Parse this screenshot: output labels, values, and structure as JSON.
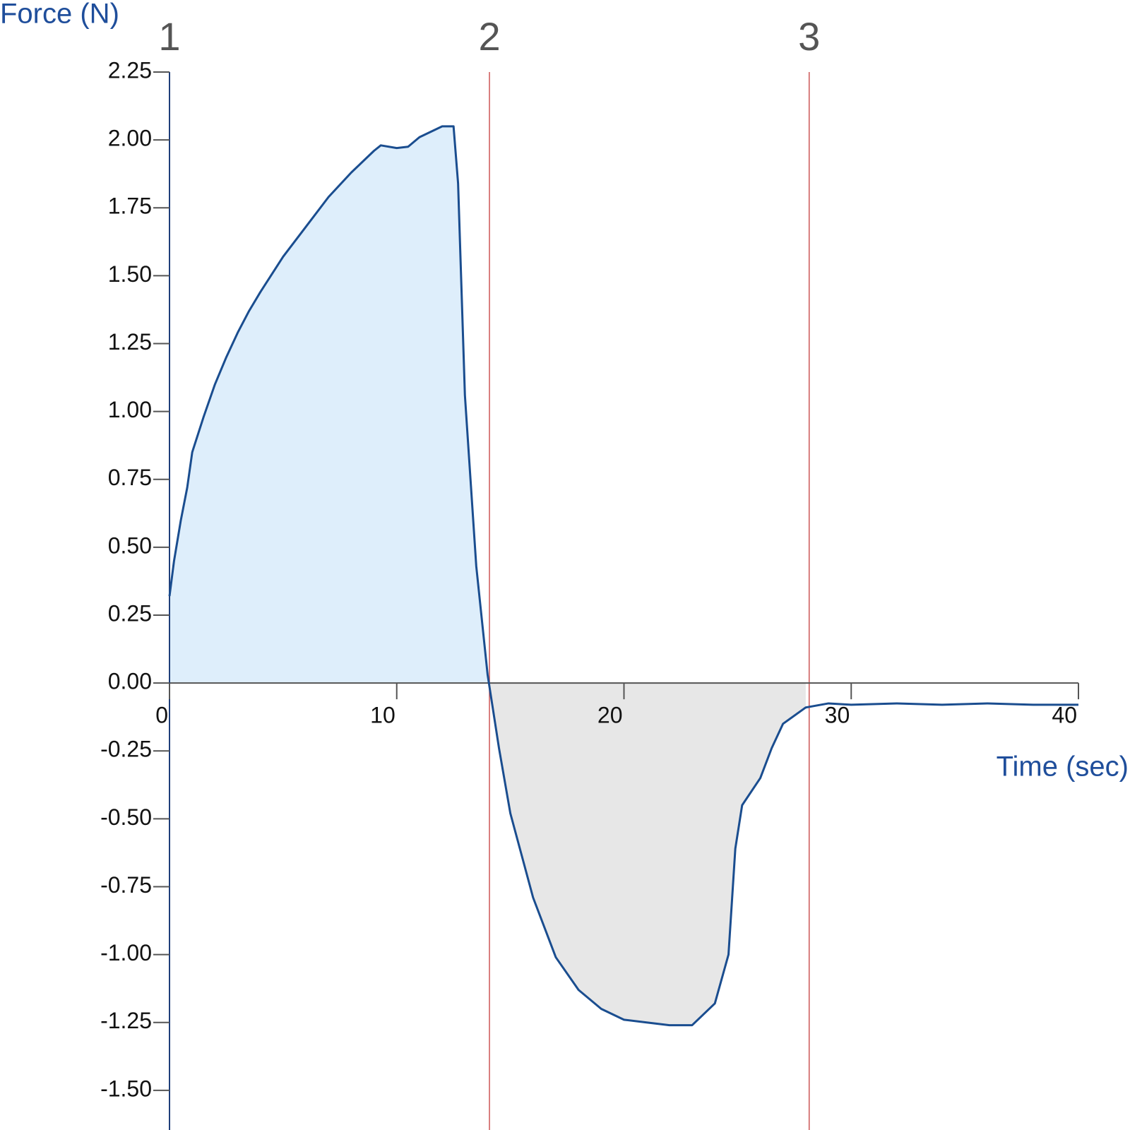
{
  "chart_data": {
    "type": "line",
    "y_label": "Force (N)",
    "x_label": "Time (sec)",
    "color": "#1a4d8f",
    "fill_colors": {
      "positive": "#deeefb",
      "negative": "#e7e7e7"
    },
    "marker_color": "#cc5555",
    "x": [
      0,
      0.2,
      0.5,
      0.78,
      1,
      1.5,
      2,
      2.5,
      3,
      3.5,
      4,
      5,
      6,
      7,
      8,
      9,
      9.3,
      10,
      10.5,
      11,
      12,
      12.5,
      12.7,
      13,
      13.5,
      14,
      14.5,
      15,
      16,
      17,
      18,
      19,
      20,
      21,
      22,
      23,
      24,
      24.6,
      24.9,
      25.2,
      26,
      26.5,
      27,
      28,
      29,
      30,
      32,
      34,
      36,
      38,
      40
    ],
    "values": [
      0.32,
      0.45,
      0.6,
      0.72,
      0.85,
      0.98,
      1.1,
      1.2,
      1.29,
      1.37,
      1.44,
      1.57,
      1.68,
      1.79,
      1.88,
      1.96,
      1.98,
      1.97,
      1.975,
      2.01,
      2.05,
      2.05,
      1.84,
      1.06,
      0.43,
      0.03,
      -0.24,
      -0.48,
      -0.79,
      -1.01,
      -1.13,
      -1.2,
      -1.24,
      -1.25,
      -1.26,
      -1.26,
      -1.18,
      -1.0,
      -0.61,
      -0.45,
      -0.35,
      -0.24,
      -0.15,
      -0.09,
      -0.075,
      -0.08,
      -0.075,
      -0.08,
      -0.075,
      -0.08,
      -0.08
    ],
    "xlim": [
      0,
      40
    ],
    "xticks": [
      0,
      10,
      20,
      30,
      40
    ],
    "ylim": [
      -1.555,
      2.25
    ],
    "yticks": [
      {
        "value": 2.25,
        "label": "2.25"
      },
      {
        "value": 2,
        "label": "2.00"
      },
      {
        "value": 1.75,
        "label": "1.75"
      },
      {
        "value": 1.5,
        "label": "1.50"
      },
      {
        "value": 1.25,
        "label": "1.25"
      },
      {
        "value": 1,
        "label": "1.00"
      },
      {
        "value": 0.75,
        "label": "0.75"
      },
      {
        "value": 0.5,
        "label": "0.50"
      },
      {
        "value": 0.25,
        "label": "0.25"
      },
      {
        "value": 0,
        "label": "0.00"
      },
      {
        "value": -0.25,
        "label": "-0.25"
      },
      {
        "value": -0.5,
        "label": "-0.50"
      },
      {
        "value": -0.75,
        "label": "-0.75"
      },
      {
        "value": -1,
        "label": "-1.00"
      },
      {
        "value": -1.25,
        "label": "-1.25"
      },
      {
        "value": -1.5,
        "label": "-1.50"
      }
    ],
    "markers": [
      {
        "x": 0,
        "label": "1"
      },
      {
        "x": 14.08,
        "label": "2"
      },
      {
        "x": 28.15,
        "label": "3"
      }
    ]
  }
}
